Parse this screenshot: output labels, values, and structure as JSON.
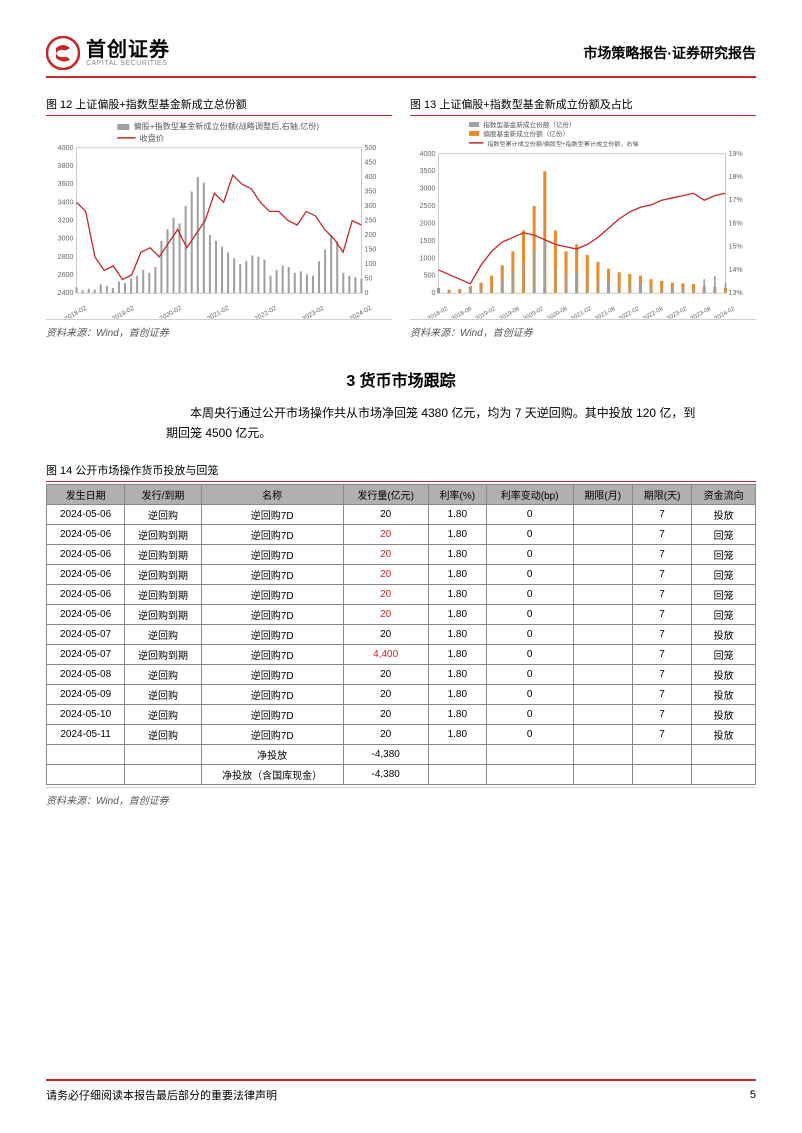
{
  "header": {
    "logo_cn": "首创证券",
    "logo_en": "CAPITAL SECURITIES",
    "right": "市场策略报告·证券研究报告"
  },
  "chart12": {
    "title": "图  12 上证偏股+指数型基金新成立总份额",
    "type": "bar_line_dual_axis",
    "legend1": "偏股+指数型基金新成立份额(战略调整后,右轴,亿份)",
    "legend2": "收盘价",
    "legend1_color": "#a0a0a0",
    "legend2_color": "#c42828",
    "y_left_min": 2400,
    "y_left_max": 4000,
    "y_left_step": 200,
    "y_right_min": 0,
    "y_right_max": 500,
    "y_right_step": 50,
    "x_labels": [
      "2018-02",
      "2019-02",
      "2020-02",
      "2021-02",
      "2022-02",
      "2023-02",
      "2024-02"
    ],
    "line_y": [
      3400,
      3300,
      2800,
      2650,
      2700,
      2550,
      2600,
      2850,
      2900,
      2800,
      2950,
      3100,
      2900,
      3050,
      3200,
      3500,
      3400,
      3700,
      3600,
      3550,
      3400,
      3300,
      3300,
      3200,
      3150,
      3300,
      3250,
      3100,
      3000,
      2850,
      3200,
      3150
    ],
    "bars_y": [
      20,
      10,
      15,
      12,
      30,
      25,
      18,
      40,
      35,
      50,
      60,
      80,
      70,
      90,
      180,
      220,
      260,
      240,
      300,
      350,
      400,
      380,
      200,
      180,
      160,
      140,
      120,
      100,
      110,
      130,
      125,
      115,
      60,
      80,
      95,
      90,
      70,
      75,
      65,
      60,
      110,
      150,
      200,
      180,
      70,
      60,
      55,
      50
    ],
    "background": "#ffffff",
    "grid_color": "#c8c8c8",
    "source": "资料来源：Wind，首创证券"
  },
  "chart13": {
    "title": "图  13 上证偏股+指数型基金新成立份额及占比",
    "type": "bar_bar_line_dual_axis",
    "legend1": "指数型基金新成立份额（亿份）",
    "legend2": "偏股基金新成立份额（亿份）",
    "legend3": "指数型累计成立份额/偏股型+指数型累计成立份额，右轴",
    "legend1_color": "#a0a0a0",
    "legend2_color": "#e88a2a",
    "legend3_color": "#c42828",
    "y_left_min": 0,
    "y_left_max": 4000,
    "y_left_step": 500,
    "y_right_min": 13,
    "y_right_max": 19,
    "y_right_step": 1,
    "y_right_suffix": "%",
    "x_labels": [
      "2018-02",
      "2018-08",
      "2019-02",
      "2019-08",
      "2020-02",
      "2020-08",
      "2021-02",
      "2021-08",
      "2022-02",
      "2022-08",
      "2023-02",
      "2023-08",
      "2024-02"
    ],
    "bars1_y": [
      100,
      80,
      90,
      120,
      150,
      200,
      400,
      600,
      900,
      1200,
      1500,
      700,
      500,
      600,
      550,
      400,
      350,
      300,
      320,
      280,
      200,
      180,
      170,
      160,
      150,
      400,
      500,
      300
    ],
    "bars2_y": [
      150,
      100,
      120,
      200,
      300,
      500,
      800,
      1200,
      1800,
      2500,
      3500,
      1800,
      1200,
      1400,
      1100,
      900,
      700,
      600,
      550,
      500,
      400,
      350,
      300,
      280,
      260,
      200,
      180,
      150
    ],
    "line_y": [
      14.0,
      13.8,
      13.6,
      13.4,
      14.2,
      14.8,
      15.2,
      15.4,
      15.6,
      15.5,
      15.3,
      15.1,
      15.0,
      14.9,
      15.1,
      15.4,
      15.8,
      16.2,
      16.5,
      16.7,
      16.8,
      17.0,
      17.1,
      17.2,
      17.3,
      17.0,
      17.2,
      17.3
    ],
    "background": "#ffffff",
    "grid_color": "#c8c8c8",
    "source": "资料来源：Wind，首创证券"
  },
  "section3": {
    "heading": "3  货币市场跟踪",
    "body": "本周央行通过公开市场操作共从市场净回笼 4380 亿元，均为 7 天逆回购。其中投放 120 亿，到期回笼 4500 亿元。"
  },
  "table14": {
    "title": "图  14 公开市场操作货币投放与回笼",
    "columns": [
      "发生日期",
      "发行/到期",
      "名称",
      "发行量(亿元)",
      "利率(%)",
      "利率变动(bp)",
      "期限(月)",
      "期限(天)",
      "资金流向"
    ],
    "rows": [
      [
        "2024-05-06",
        "逆回购",
        "逆回购7D",
        "20",
        "1.80",
        "0",
        "",
        "7",
        "投放",
        false
      ],
      [
        "2024-05-06",
        "逆回购到期",
        "逆回购7D",
        "20",
        "1.80",
        "0",
        "",
        "7",
        "回笼",
        true
      ],
      [
        "2024-05-06",
        "逆回购到期",
        "逆回购7D",
        "20",
        "1.80",
        "0",
        "",
        "7",
        "回笼",
        true
      ],
      [
        "2024-05-06",
        "逆回购到期",
        "逆回购7D",
        "20",
        "1.80",
        "0",
        "",
        "7",
        "回笼",
        true
      ],
      [
        "2024-05-06",
        "逆回购到期",
        "逆回购7D",
        "20",
        "1.80",
        "0",
        "",
        "7",
        "回笼",
        true
      ],
      [
        "2024-05-06",
        "逆回购到期",
        "逆回购7D",
        "20",
        "1.80",
        "0",
        "",
        "7",
        "回笼",
        true
      ],
      [
        "2024-05-07",
        "逆回购",
        "逆回购7D",
        "20",
        "1.80",
        "0",
        "",
        "7",
        "投放",
        false
      ],
      [
        "2024-05-07",
        "逆回购到期",
        "逆回购7D",
        "4,400",
        "1.80",
        "0",
        "",
        "7",
        "回笼",
        true
      ],
      [
        "2024-05-08",
        "逆回购",
        "逆回购7D",
        "20",
        "1.80",
        "0",
        "",
        "7",
        "投放",
        false
      ],
      [
        "2024-05-09",
        "逆回购",
        "逆回购7D",
        "20",
        "1.80",
        "0",
        "",
        "7",
        "投放",
        false
      ],
      [
        "2024-05-10",
        "逆回购",
        "逆回购7D",
        "20",
        "1.80",
        "0",
        "",
        "7",
        "投放",
        false
      ],
      [
        "2024-05-11",
        "逆回购",
        "逆回购7D",
        "20",
        "1.80",
        "0",
        "",
        "7",
        "投放",
        false
      ]
    ],
    "summary": [
      [
        "",
        "",
        "净投放",
        "-4,380",
        "",
        "",
        "",
        "",
        ""
      ],
      [
        "",
        "",
        "净投放（含国库现金）",
        "-4,380",
        "",
        "",
        "",
        "",
        ""
      ]
    ],
    "source": "资料来源：Wind，首创证券"
  },
  "footer": {
    "disclaimer": "请务必仔细阅读本报告最后部分的重要法律声明",
    "page": "5"
  }
}
